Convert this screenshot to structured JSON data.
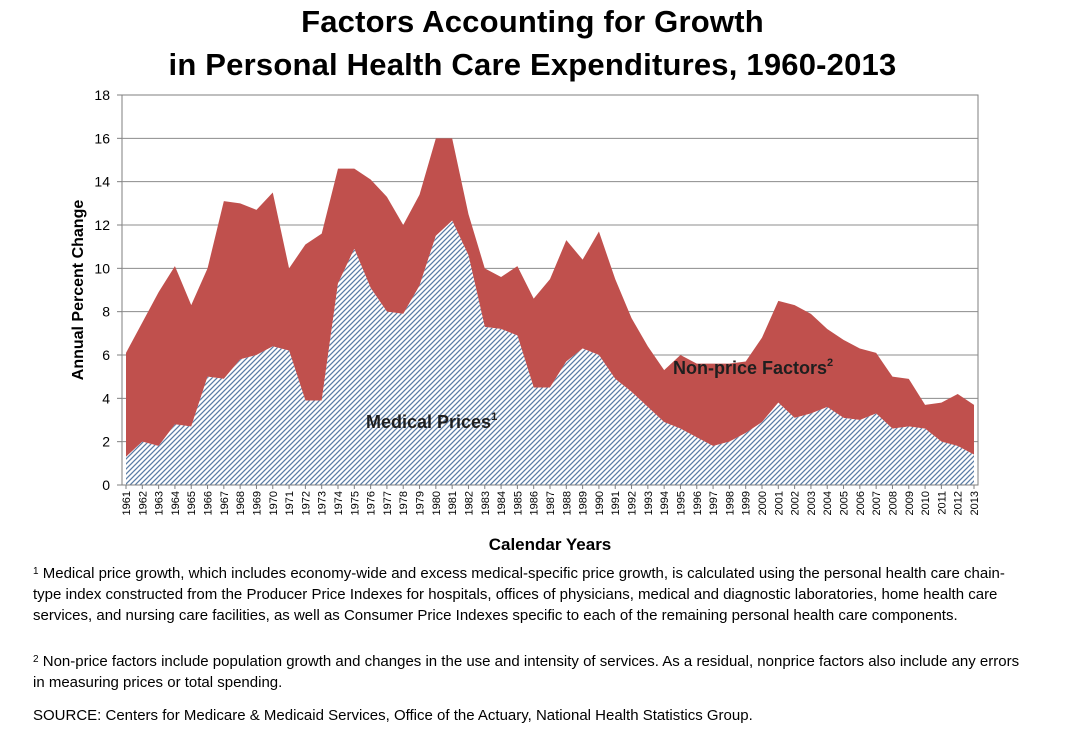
{
  "chart_data": {
    "type": "area",
    "title_line1": "Factors Accounting for Growth",
    "title_line2": "in Personal Health Care Expenditures, 1960-2013",
    "xlabel": "Calendar Years",
    "ylabel": "Annual Percent Change",
    "ylim": [
      0,
      18
    ],
    "yticks": [
      0,
      2,
      4,
      6,
      8,
      10,
      12,
      14,
      16,
      18
    ],
    "grid": true,
    "stacked": true,
    "x": [
      "1961",
      "1962",
      "1963",
      "1964",
      "1965",
      "1966",
      "1967",
      "1968",
      "1969",
      "1970",
      "1971",
      "1972",
      "1973",
      "1974",
      "1975",
      "1976",
      "1977",
      "1978",
      "1979",
      "1980",
      "1981",
      "1982",
      "1983",
      "1984",
      "1985",
      "1986",
      "1987",
      "1988",
      "1989",
      "1990",
      "1991",
      "1992",
      "1993",
      "1994",
      "1995",
      "1996",
      "1997",
      "1998",
      "1999",
      "2000",
      "2001",
      "2002",
      "2003",
      "2004",
      "2005",
      "2006",
      "2007",
      "2008",
      "2009",
      "2010",
      "2011",
      "2012",
      "2013"
    ],
    "series": [
      {
        "name": "Medical Prices",
        "label": "Medical Prices",
        "label_sup": "1",
        "color": "#9fb4cc",
        "values": [
          1.3,
          2.0,
          1.8,
          2.8,
          2.7,
          5.0,
          4.9,
          5.8,
          6.0,
          6.4,
          6.2,
          3.9,
          3.9,
          9.3,
          10.9,
          9.1,
          8.0,
          7.9,
          9.2,
          11.5,
          12.2,
          10.6,
          7.3,
          7.2,
          6.9,
          4.5,
          4.5,
          5.7,
          6.3,
          6.0,
          4.9,
          4.3,
          3.6,
          2.9,
          2.6,
          2.2,
          1.8,
          2.0,
          2.4,
          2.9,
          3.8,
          3.1,
          3.3,
          3.6,
          3.1,
          3.0,
          3.3,
          2.6,
          2.7,
          2.6,
          2.0,
          1.8,
          1.4
        ]
      },
      {
        "name": "Non-price Factors",
        "label": "Non-price Factors",
        "label_sup": "2",
        "color": "#c0504d",
        "values": [
          4.8,
          5.5,
          7.1,
          7.3,
          5.6,
          5.0,
          8.2,
          7.2,
          6.7,
          7.1,
          3.8,
          7.2,
          7.7,
          5.3,
          3.7,
          5.0,
          5.3,
          4.1,
          4.2,
          4.5,
          3.8,
          1.9,
          2.7,
          2.4,
          3.2,
          4.1,
          5.0,
          5.6,
          4.1,
          5.7,
          4.6,
          3.4,
          2.8,
          2.4,
          3.4,
          3.4,
          3.8,
          3.6,
          3.3,
          3.9,
          4.7,
          5.2,
          4.6,
          3.6,
          3.6,
          3.3,
          2.8,
          2.4,
          2.2,
          1.1,
          1.8,
          2.4,
          2.3
        ]
      }
    ]
  },
  "footnotes": {
    "fn1_mark": "1",
    "fn1_text": " Medical price growth, which includes economy-wide and excess medical-specific price growth, is calculated using the personal health care chain-type index constructed from the Producer Price Indexes for hospitals, offices of physicians, medical and diagnostic laboratories, home health care services, and nursing care facilities, as well as Consumer Price Indexes specific to each of the remaining personal health care components.",
    "fn2_mark": "2",
    "fn2_text": " Non-price factors include population growth  and changes in the use and intensity of services.  As a residual, nonprice factors also include any errors in measuring prices or total spending.",
    "source": "SOURCE: Centers for Medicare & Medicaid Services, Office of the Actuary, National Health Statistics Group."
  }
}
